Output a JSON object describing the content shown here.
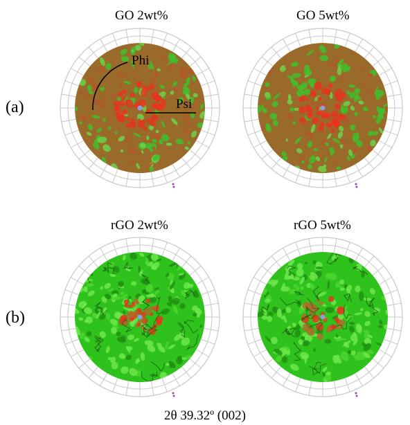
{
  "panels": [
    {
      "id": "go-2wt",
      "title": "GO 2wt%",
      "scheme": "red",
      "annotated": true
    },
    {
      "id": "go-5wt",
      "title": "GO 5wt%",
      "scheme": "red",
      "annotated": false
    },
    {
      "id": "rgo-2wt",
      "title": "rGO 2wt%",
      "scheme": "green",
      "annotated": false
    },
    {
      "id": "rgo-5wt",
      "title": "rGO 5wt%",
      "scheme": "green",
      "annotated": false
    }
  ],
  "row_labels": {
    "a": "(a)",
    "b": "(b)"
  },
  "annotations": {
    "phi": "Phi",
    "psi": "Psi"
  },
  "caption": "2θ 39.32º (002)",
  "colors": {
    "red_base": "#9a6a2a",
    "red_hot": "#e8321e",
    "green_base": "#2fc21c",
    "green_dark": "#1f8f12",
    "green_light": "#6fe84a",
    "center_dot": "#8aa0e0",
    "grid": "#c8c8c8"
  }
}
